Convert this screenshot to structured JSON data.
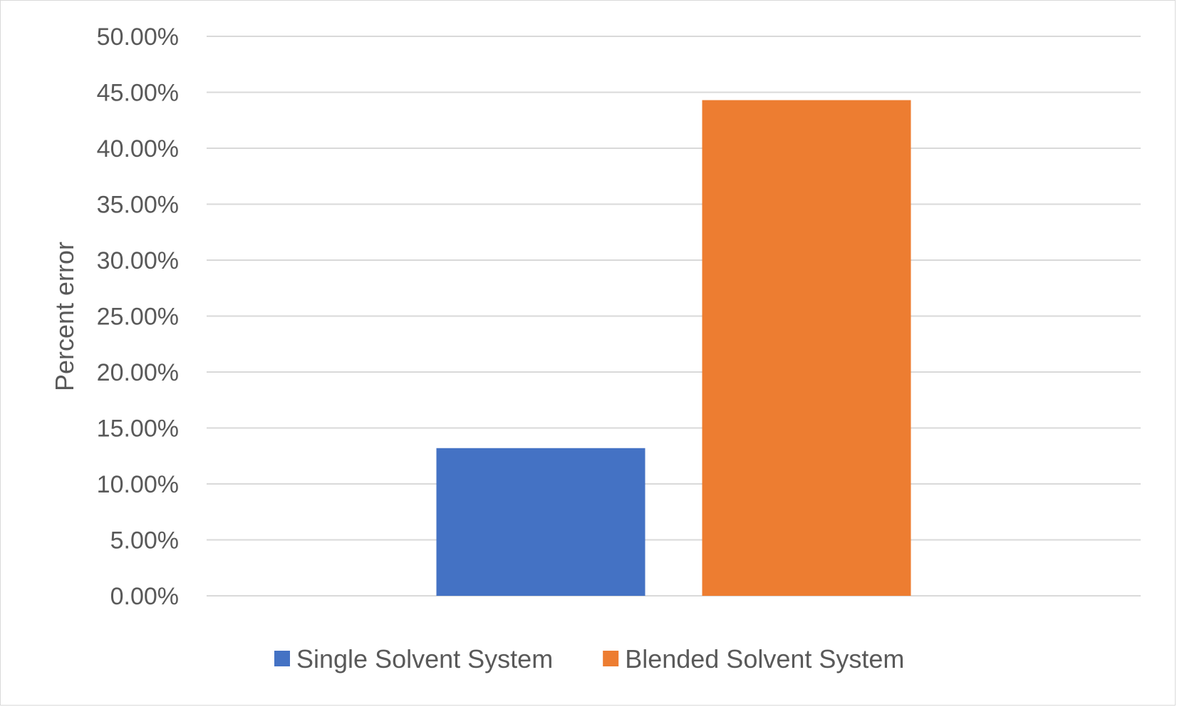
{
  "chart_data": {
    "type": "bar",
    "title": "",
    "xlabel": "",
    "ylabel": "Percent error",
    "ylim": [
      0,
      0.5
    ],
    "yticks": [
      0,
      0.05,
      0.1,
      0.15,
      0.2,
      0.25,
      0.3,
      0.35,
      0.4,
      0.45,
      0.5
    ],
    "ytick_labels": [
      "0.00%",
      "5.00%",
      "10.00%",
      "15.00%",
      "20.00%",
      "25.00%",
      "30.00%",
      "35.00%",
      "40.00%",
      "45.00%",
      "50.00%"
    ],
    "grid": true,
    "legend_position": "bottom",
    "series": [
      {
        "name": "Single Solvent System",
        "value": 0.132,
        "color": "#4472C4"
      },
      {
        "name": "Blended Solvent System",
        "value": 0.443,
        "color": "#ED7D31"
      }
    ]
  }
}
